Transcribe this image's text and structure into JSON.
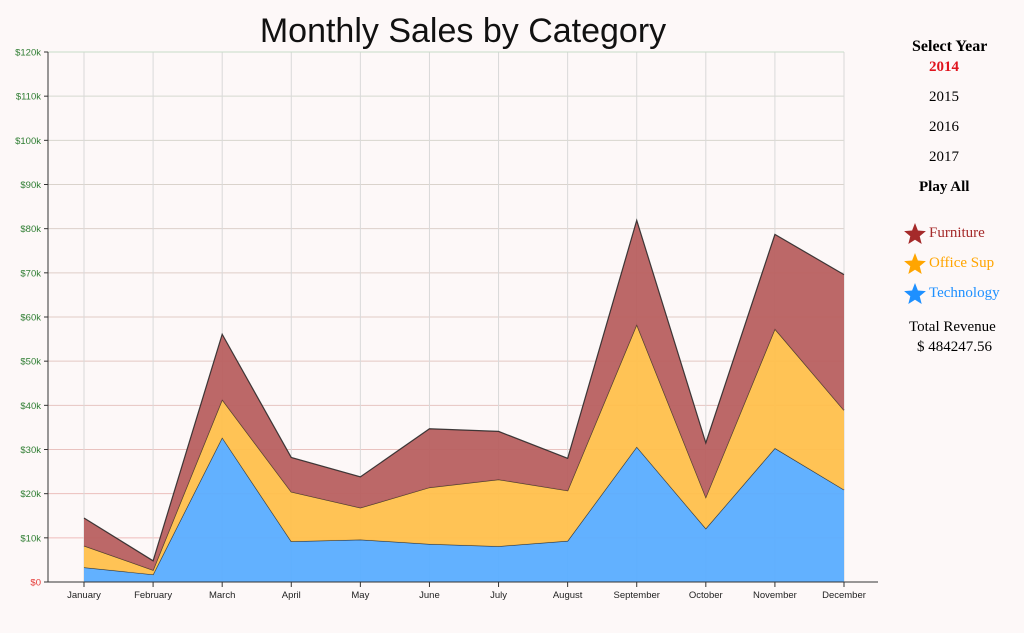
{
  "chart_data": {
    "type": "area",
    "title": "Monthly Sales by Category",
    "stacked": true,
    "categories": [
      "January",
      "February",
      "March",
      "April",
      "May",
      "June",
      "July",
      "August",
      "September",
      "October",
      "November",
      "December"
    ],
    "y_ticks": [
      "$0",
      "$10k",
      "$20k",
      "$30k",
      "$40k",
      "$50k",
      "$60k",
      "$70k",
      "$80k",
      "$90k",
      "$100k",
      "$110k",
      "$120k"
    ],
    "ylim": [
      0,
      120000
    ],
    "grid": true,
    "series": [
      {
        "name": "Technology",
        "color": "#5aadff",
        "values": [
          3300,
          1700,
          32700,
          9200,
          9600,
          8600,
          8100,
          9300,
          30600,
          12100,
          30300,
          20900
        ]
      },
      {
        "name": "Office Sup",
        "color": "#ffc04c",
        "values": [
          4900,
          1000,
          8600,
          11200,
          7200,
          12800,
          15100,
          11400,
          27700,
          7100,
          27000,
          18000
        ]
      },
      {
        "name": "Furniture",
        "color": "#b86060",
        "values": [
          6300,
          2100,
          14800,
          7800,
          7000,
          13300,
          10900,
          7300,
          23600,
          12300,
          21400,
          30700
        ]
      }
    ]
  },
  "controls": {
    "select_year_label": "Select Year",
    "years": [
      "2014",
      "2015",
      "2016",
      "2017"
    ],
    "active_year": "2014",
    "play_all_label": "Play All"
  },
  "legend": [
    {
      "label": "Furniture",
      "color": "#a52a2a",
      "icon": "star-icon"
    },
    {
      "label": "Office Sup",
      "color": "#ffa500",
      "icon": "star-icon"
    },
    {
      "label": "Technology",
      "color": "#1e90ff",
      "icon": "star-icon"
    }
  ],
  "revenue": {
    "label": "Total Revenue",
    "value": "$ 484247.56"
  },
  "colors": {
    "tick_green": "#2e7d32",
    "tick_zero": "#e53935",
    "active_year": "#e0141e"
  }
}
